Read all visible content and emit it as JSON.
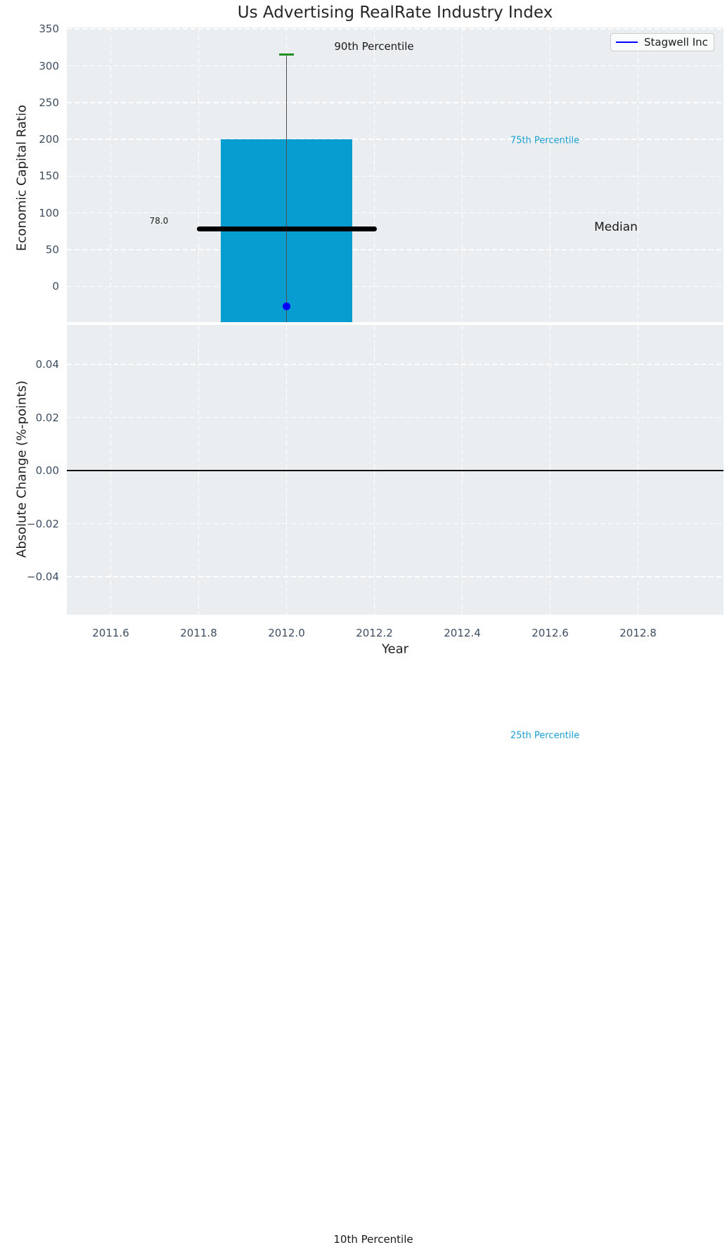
{
  "chart_data": {
    "type": "boxplot",
    "title": "Us Advertising RealRate Industry Index",
    "xlabel": "Year",
    "x_tick_values": [
      2011.6,
      2011.8,
      2012.0,
      2012.2,
      2012.4,
      2012.6,
      2012.8
    ],
    "x_tick_labels": [
      "2011.6",
      "2011.8",
      "2012.0",
      "2012.2",
      "2012.4",
      "2012.6",
      "2012.8"
    ],
    "xlim": [
      2011.5,
      2012.995
    ],
    "top_panel": {
      "ylabel": "Economic Capital Ratio",
      "ytick_values": [
        350,
        300,
        250,
        200,
        150,
        100,
        50,
        0
      ],
      "ytick_labels": [
        "350",
        "300",
        "250",
        "200",
        "150",
        "100",
        "50",
        "0"
      ],
      "ylim": [
        -48.5,
        352
      ],
      "grid": "white-dashed",
      "box": {
        "center_x": 2012.0,
        "x_left": 2011.85,
        "x_right": 2012.15,
        "p90_whisker": 315,
        "p75": 200,
        "median": 78,
        "p25": "clipped-below-axis",
        "color": "#089dd1",
        "whisker_cap_color": "#228B22"
      },
      "median_line": {
        "value": 78,
        "x_left": 2011.8,
        "x_right": 2012.2,
        "label": "78.0",
        "color": "#000000"
      },
      "company_point": {
        "name": "Stagwell Inc",
        "x": 2012.0,
        "y": -27,
        "color": "#0000ff"
      }
    },
    "bottom_panel": {
      "ylabel": "Absolute Change (%-points)",
      "ytick_values": [
        0.04,
        0.02,
        0.0,
        -0.02,
        -0.04
      ],
      "ytick_labels": [
        "0.04",
        "0.02",
        "0.00",
        "−0.02",
        "−0.04"
      ],
      "ylim": [
        -0.054,
        0.055
      ],
      "zero_line": 0.0,
      "zero_line_color": "#121212",
      "grid": "white-dashed"
    },
    "annotations": [
      {
        "text": "90th Percentile",
        "color": "#1a1a1a"
      },
      {
        "text": "75th Percentile",
        "color": "#1b9fd4"
      },
      {
        "text": "Median",
        "color": "#1a1a1a"
      },
      {
        "text": "25th Percentile",
        "color": "#1b9fd4"
      },
      {
        "text": "10th Percentile",
        "color": "#1a1a1a"
      }
    ],
    "legend": {
      "position": "upper-right",
      "entries": [
        {
          "label": "Stagwell Inc",
          "color": "#0000ff"
        }
      ]
    },
    "colors": {
      "plot_background": "#ebeef0",
      "gridline": "#ffffff",
      "tick_label": "#3d4e62"
    }
  }
}
